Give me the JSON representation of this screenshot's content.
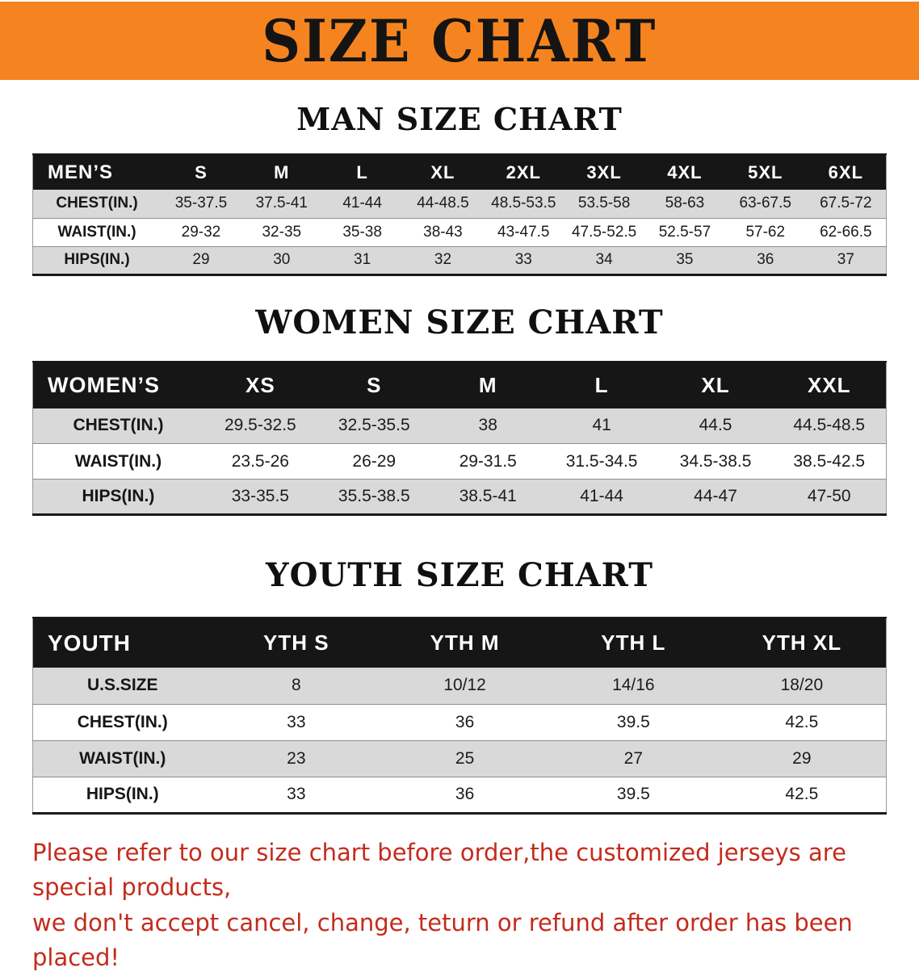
{
  "banner": {
    "title": "SIZE CHART"
  },
  "colors": {
    "banner_bg": "#F58420",
    "header_bg": "#161616",
    "row_alt": "#D9D9D9",
    "notice_red": "#C42B1C"
  },
  "sections": [
    {
      "id": "men",
      "heading": "MAN SIZE CHART",
      "table": {
        "header": [
          "MEN’S",
          "S",
          "M",
          "L",
          "XL",
          "2XL",
          "3XL",
          "4XL",
          "5XL",
          "6XL"
        ],
        "rows": [
          [
            "CHEST(IN.)",
            "35-37.5",
            "37.5-41",
            "41-44",
            "44-48.5",
            "48.5-53.5",
            "53.5-58",
            "58-63",
            "63-67.5",
            "67.5-72"
          ],
          [
            "WAIST(IN.)",
            "29-32",
            "32-35",
            "35-38",
            "38-43",
            "43-47.5",
            "47.5-52.5",
            "52.5-57",
            "57-62",
            "62-66.5"
          ],
          [
            "HIPS(IN.)",
            "29",
            "30",
            "31",
            "32",
            "33",
            "34",
            "35",
            "36",
            "37"
          ]
        ]
      }
    },
    {
      "id": "women",
      "heading": "WOMEN SIZE CHART",
      "table": {
        "header": [
          "WOMEN’S",
          "XS",
          "S",
          "M",
          "L",
          "XL",
          "XXL"
        ],
        "rows": [
          [
            "CHEST(IN.)",
            "29.5-32.5",
            "32.5-35.5",
            "38",
            "41",
            "44.5",
            "44.5-48.5"
          ],
          [
            "WAIST(IN.)",
            "23.5-26",
            "26-29",
            "29-31.5",
            "31.5-34.5",
            "34.5-38.5",
            "38.5-42.5"
          ],
          [
            "HIPS(IN.)",
            "33-35.5",
            "35.5-38.5",
            "38.5-41",
            "41-44",
            "44-47",
            "47-50"
          ]
        ]
      }
    },
    {
      "id": "youth",
      "heading": "YOUTH SIZE CHART",
      "table": {
        "header": [
          "YOUTH",
          "YTH S",
          "YTH M",
          "YTH L",
          "YTH XL"
        ],
        "rows": [
          [
            "U.S.SIZE",
            "8",
            "10/12",
            "14/16",
            "18/20"
          ],
          [
            "CHEST(IN.)",
            "33",
            "36",
            "39.5",
            "42.5"
          ],
          [
            "WAIST(IN.)",
            "23",
            "25",
            "27",
            "29"
          ],
          [
            "HIPS(IN.)",
            "33",
            "36",
            "39.5",
            "42.5"
          ]
        ]
      }
    }
  ],
  "footer": {
    "lines": [
      "Please refer to our size chart before order,the customized jerseys are special products,",
      "we don't accept cancel, change, teturn or refund after order has been placed!"
    ]
  }
}
